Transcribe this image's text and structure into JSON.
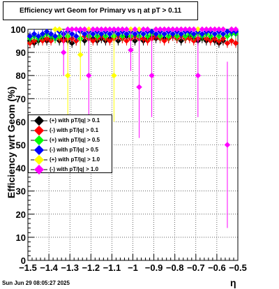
{
  "title": "Efficiency wrt Geom for Primary vs η at pT > 0.11",
  "timestamp": "Sun Jun 29 08:05:27 2025",
  "chart_data": {
    "type": "scatter",
    "xlabel": "η",
    "ylabel": "Efficiency wrt Geom (%)",
    "xlim": [
      -1.5,
      -0.5
    ],
    "ylim": [
      0,
      100
    ],
    "xticks": [
      -1.5,
      -1.4,
      -1.3,
      -1.2,
      -1.1,
      -1,
      -0.9,
      -0.8,
      -0.7,
      -0.6,
      -0.5
    ],
    "xtick_labels": [
      "−1.5",
      "−1.4",
      "−1.3",
      "−1.2",
      "−1.1",
      "−1",
      "−0.9",
      "−0.8",
      "−0.7",
      "−0.6",
      "−0.5"
    ],
    "yticks": [
      0,
      10,
      20,
      30,
      40,
      50,
      60,
      70,
      80,
      90,
      100
    ],
    "ytick_labels": [
      "0",
      "10",
      "20",
      "30",
      "40",
      "50",
      "60",
      "70",
      "80",
      "90",
      "100"
    ],
    "grid": true,
    "legend_position": "center-left",
    "series": [
      {
        "name": "(+) with pT/|q| > 0.1",
        "color": "#000000",
        "x": [
          -1.49,
          -1.47,
          -1.45,
          -1.43,
          -1.41,
          -1.39,
          -1.37,
          -1.35,
          -1.33,
          -1.31,
          -1.29,
          -1.27,
          -1.25,
          -1.23,
          -1.21,
          -1.19,
          -1.17,
          -1.15,
          -1.13,
          -1.11,
          -1.09,
          -1.07,
          -1.05,
          -1.03,
          -1.01,
          -0.99,
          -0.97,
          -0.95,
          -0.93,
          -0.91,
          -0.89,
          -0.87,
          -0.85,
          -0.83,
          -0.81,
          -0.79,
          -0.77,
          -0.75,
          -0.73,
          -0.71,
          -0.69,
          -0.67,
          -0.65,
          -0.63,
          -0.61,
          -0.59,
          -0.57,
          -0.55,
          -0.53,
          -0.51
        ],
        "y": [
          95,
          94,
          95,
          96,
          95,
          96,
          97,
          95,
          96,
          95,
          94,
          95,
          96,
          95,
          97,
          96,
          95,
          96,
          95,
          96,
          97,
          95,
          96,
          97,
          96,
          95,
          96,
          95,
          96,
          97,
          96,
          97,
          96,
          96,
          97,
          96,
          95,
          96,
          97,
          96,
          95,
          96,
          95,
          96,
          95,
          94,
          95,
          94,
          95,
          94
        ],
        "yerr": [
          2,
          2,
          2,
          2,
          2,
          2,
          2,
          2,
          2,
          2,
          2,
          2,
          2,
          2,
          2,
          2,
          2,
          2,
          2,
          2,
          2,
          2,
          2,
          2,
          2,
          2,
          2,
          2,
          2,
          2,
          2,
          2,
          2,
          2,
          2,
          2,
          2,
          2,
          2,
          2,
          2,
          2,
          2,
          2,
          2,
          2,
          2,
          2,
          2,
          2
        ]
      },
      {
        "name": "(-) with pT/|q| > 0.1",
        "color": "#ff0000",
        "x": [
          -1.49,
          -1.47,
          -1.45,
          -1.43,
          -1.41,
          -1.39,
          -1.37,
          -1.35,
          -1.33,
          -1.31,
          -1.29,
          -1.27,
          -1.25,
          -1.23,
          -1.21,
          -1.19,
          -1.17,
          -1.15,
          -1.13,
          -1.11,
          -1.09,
          -1.07,
          -1.05,
          -1.03,
          -1.01,
          -0.99,
          -0.97,
          -0.95,
          -0.93,
          -0.91,
          -0.89,
          -0.87,
          -0.85,
          -0.83,
          -0.81,
          -0.79,
          -0.77,
          -0.75,
          -0.73,
          -0.71,
          -0.69,
          -0.67,
          -0.65,
          -0.63,
          -0.61,
          -0.59,
          -0.57,
          -0.55,
          -0.53,
          -0.51
        ],
        "y": [
          94,
          95,
          96,
          95,
          96,
          95,
          96,
          96,
          95,
          96,
          96,
          95,
          96,
          97,
          96,
          95,
          96,
          97,
          96,
          95,
          96,
          97,
          96,
          95,
          96,
          97,
          96,
          96,
          95,
          96,
          97,
          96,
          95,
          96,
          97,
          96,
          97,
          96,
          96,
          95,
          96,
          97,
          96,
          95,
          96,
          95,
          96,
          94,
          95,
          94
        ],
        "yerr": [
          2,
          2,
          2,
          2,
          2,
          2,
          2,
          2,
          2,
          2,
          2,
          2,
          2,
          2,
          2,
          2,
          2,
          2,
          2,
          2,
          2,
          2,
          2,
          2,
          2,
          2,
          2,
          2,
          2,
          2,
          2,
          2,
          2,
          2,
          2,
          2,
          2,
          2,
          2,
          2,
          2,
          2,
          2,
          2,
          2,
          2,
          2,
          2,
          2,
          2
        ]
      },
      {
        "name": "(+) with pT/|q| > 0.5",
        "color": "#00ff00",
        "x": [
          -1.49,
          -1.47,
          -1.45,
          -1.43,
          -1.41,
          -1.39,
          -1.37,
          -1.35,
          -1.33,
          -1.31,
          -1.29,
          -1.27,
          -1.25,
          -1.23,
          -1.21,
          -1.19,
          -1.17,
          -1.15,
          -1.13,
          -1.11,
          -1.09,
          -1.07,
          -1.05,
          -1.03,
          -1.01,
          -0.99,
          -0.97,
          -0.95,
          -0.93,
          -0.91,
          -0.89,
          -0.87,
          -0.85,
          -0.83,
          -0.81,
          -0.79,
          -0.77,
          -0.75,
          -0.73,
          -0.71,
          -0.69,
          -0.67,
          -0.65,
          -0.63,
          -0.61,
          -0.59,
          -0.57,
          -0.55,
          -0.53,
          -0.51
        ],
        "y": [
          96,
          97,
          96,
          97,
          98,
          97,
          96,
          97,
          98,
          97,
          98,
          97,
          96,
          98,
          97,
          98,
          97,
          98,
          97,
          98,
          97,
          98,
          97,
          98,
          97,
          98,
          97,
          98,
          97,
          98,
          98,
          97,
          98,
          97,
          98,
          97,
          98,
          97,
          98,
          97,
          98,
          97,
          98,
          97,
          98,
          97,
          98,
          97,
          98,
          98
        ],
        "yerr": [
          2,
          2,
          2,
          2,
          2,
          2,
          2,
          2,
          2,
          2,
          2,
          2,
          2,
          2,
          2,
          2,
          2,
          2,
          2,
          2,
          2,
          2,
          2,
          2,
          2,
          2,
          2,
          2,
          2,
          2,
          2,
          2,
          2,
          2,
          2,
          2,
          2,
          2,
          2,
          2,
          2,
          2,
          2,
          2,
          2,
          2,
          2,
          2,
          2,
          2
        ]
      },
      {
        "name": "(-) with pT/|q| > 0.5",
        "color": "#0000ff",
        "x": [
          -1.49,
          -1.47,
          -1.45,
          -1.43,
          -1.41,
          -1.39,
          -1.37,
          -1.35,
          -1.33,
          -1.31,
          -1.29,
          -1.27,
          -1.25,
          -1.23,
          -1.21,
          -1.19,
          -1.17,
          -1.15,
          -1.13,
          -1.11,
          -1.09,
          -1.07,
          -1.05,
          -1.03,
          -1.01,
          -0.99,
          -0.97,
          -0.95,
          -0.93,
          -0.91,
          -0.89,
          -0.87,
          -0.85,
          -0.83,
          -0.81,
          -0.79,
          -0.77,
          -0.75,
          -0.73,
          -0.71,
          -0.69,
          -0.67,
          -0.65,
          -0.63,
          -0.61,
          -0.59,
          -0.57,
          -0.55,
          -0.53,
          -0.51
        ],
        "y": [
          97,
          98,
          97,
          98,
          99,
          98,
          97,
          99,
          98,
          99,
          98,
          97,
          99,
          98,
          99,
          98,
          99,
          98,
          99,
          98,
          99,
          98,
          99,
          98,
          99,
          98,
          99,
          98,
          99,
          99,
          98,
          99,
          98,
          99,
          98,
          99,
          98,
          99,
          99,
          98,
          99,
          98,
          99,
          99,
          98,
          99,
          98,
          99,
          99,
          99
        ],
        "yerr": [
          2,
          2,
          2,
          2,
          2,
          2,
          2,
          2,
          2,
          2,
          2,
          2,
          2,
          2,
          2,
          2,
          2,
          2,
          2,
          2,
          2,
          2,
          2,
          2,
          2,
          2,
          2,
          2,
          2,
          2,
          2,
          2,
          2,
          2,
          2,
          2,
          2,
          2,
          2,
          2,
          2,
          2,
          2,
          2,
          2,
          2,
          2,
          2,
          2,
          2
        ]
      },
      {
        "name": "(+) with pT/|q| > 1.0",
        "color": "#ffff00",
        "x": [
          -1.37,
          -1.35,
          -1.31,
          -1.29,
          -1.25,
          -1.23,
          -1.21,
          -1.17,
          -1.13,
          -1.09,
          -1.05,
          -1.01,
          -0.97,
          -0.93,
          -0.89,
          -0.85,
          -0.81,
          -0.77,
          -0.73,
          -0.69,
          -0.65,
          -0.61,
          -0.57,
          -0.53
        ],
        "y": [
          100,
          100,
          80,
          100,
          89,
          100,
          100,
          100,
          100,
          80,
          100,
          100,
          100,
          100,
          100,
          100,
          100,
          100,
          100,
          100,
          100,
          100,
          100,
          100
        ],
        "yerr": [
          0,
          0,
          20,
          0,
          11,
          0,
          0,
          0,
          0,
          20,
          0,
          0,
          0,
          0,
          0,
          0,
          0,
          0,
          0,
          0,
          0,
          0,
          0,
          0
        ]
      },
      {
        "name": "(-) with pT/|q| > 1.0",
        "color": "#ff00ff",
        "x": [
          -1.33,
          -1.31,
          -1.29,
          -1.27,
          -1.25,
          -1.23,
          -1.21,
          -1.19,
          -1.17,
          -1.15,
          -1.13,
          -1.11,
          -1.09,
          -1.07,
          -1.05,
          -1.03,
          -1.01,
          -0.99,
          -0.97,
          -0.95,
          -0.93,
          -0.91,
          -0.89,
          -0.87,
          -0.85,
          -0.83,
          -0.81,
          -0.79,
          -0.77,
          -0.75,
          -0.73,
          -0.71,
          -0.69,
          -0.67,
          -0.65,
          -0.63,
          -0.61,
          -0.59,
          -0.57,
          -0.55,
          -0.53,
          -0.51
        ],
        "y": [
          90,
          100,
          100,
          100,
          100,
          100,
          80,
          100,
          100,
          100,
          100,
          100,
          100,
          100,
          100,
          100,
          91,
          100,
          75,
          100,
          100,
          80,
          100,
          100,
          100,
          100,
          100,
          100,
          100,
          100,
          100,
          100,
          80,
          100,
          100,
          100,
          100,
          100,
          100,
          50,
          100,
          100
        ],
        "yerr": [
          10,
          0,
          0,
          0,
          0,
          0,
          20,
          0,
          0,
          0,
          0,
          0,
          0,
          0,
          0,
          0,
          9,
          0,
          22,
          0,
          0,
          18,
          0,
          0,
          0,
          0,
          0,
          0,
          0,
          0,
          0,
          0,
          18,
          0,
          0,
          0,
          0,
          0,
          0,
          36,
          0,
          0
        ]
      }
    ]
  }
}
